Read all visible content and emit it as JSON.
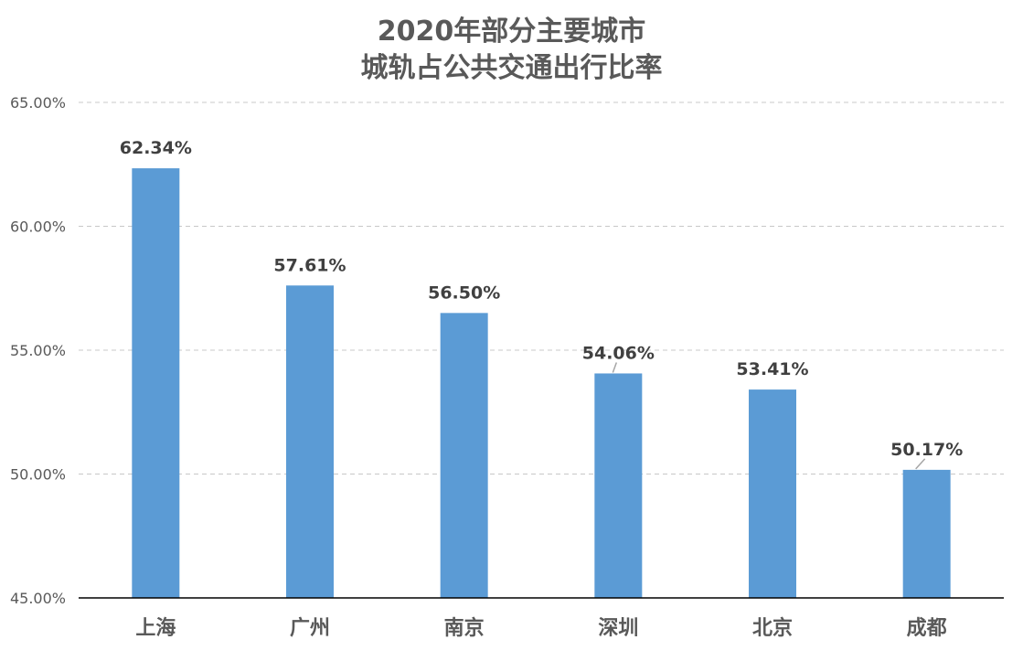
{
  "chart_data": {
    "type": "bar",
    "title_lines": [
      "2020年部分主要城市",
      "城轨占公共交通出行比率"
    ],
    "categories": [
      "上海",
      "广州",
      "南京",
      "深圳",
      "北京",
      "成都"
    ],
    "values": [
      62.34,
      57.61,
      56.5,
      54.06,
      53.41,
      50.17
    ],
    "value_labels": [
      "62.34%",
      "57.61%",
      "56.50%",
      "54.06%",
      "53.41%",
      "50.17%"
    ],
    "y_ticks": [
      45,
      50,
      55,
      60,
      65
    ],
    "y_tick_labels": [
      "45.00%",
      "50.00%",
      "55.00%",
      "60.00%",
      "65.00%"
    ],
    "ylim": [
      45,
      65
    ],
    "grid": true,
    "bar_color": "#5B9BD5",
    "xlabel": "",
    "ylabel": ""
  }
}
